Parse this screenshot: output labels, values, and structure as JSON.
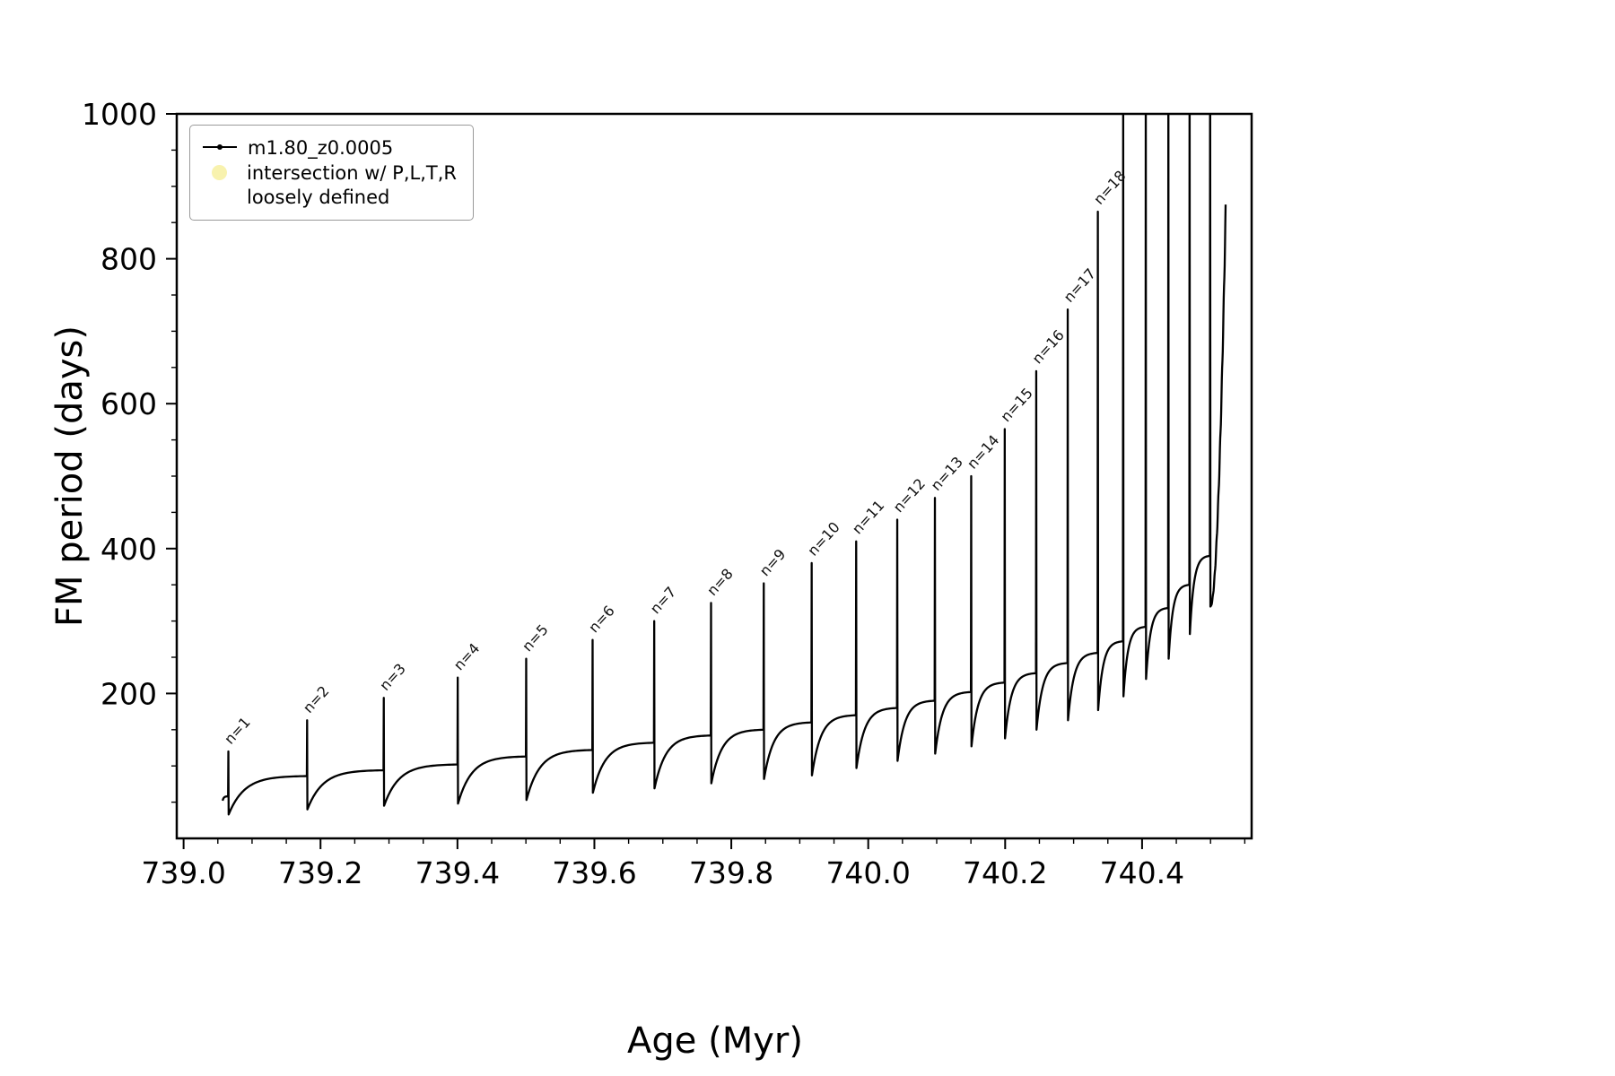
{
  "figure": {
    "background": "#ffffff",
    "frame_color": "#000000",
    "line_color": "#000000"
  },
  "chart_data": {
    "type": "line",
    "title": "",
    "xlabel": "Age (Myr)",
    "ylabel": "FM period (days)",
    "xlim": [
      738.99,
      740.56
    ],
    "ylim": [
      0,
      1000
    ],
    "xticks": [
      739.0,
      739.2,
      739.4,
      739.6,
      739.8,
      740.0,
      740.2,
      740.4
    ],
    "xtick_labels": [
      "739.0",
      "739.2",
      "739.4",
      "739.6",
      "739.8",
      "740.0",
      "740.2",
      "740.4"
    ],
    "yticks": [
      200,
      400,
      600,
      800,
      1000
    ],
    "ytick_labels": [
      "200",
      "400",
      "600",
      "800",
      "1000"
    ],
    "x_minor_step": 0.05,
    "y_minor_step": 50,
    "grid": false,
    "legend_position": "upper-left",
    "legend": [
      {
        "label": "m1.80_z0.0005",
        "marker": "dotted-line",
        "color": "#000000"
      },
      {
        "label_line1": "intersection w/ P,L,T,R",
        "label_line2": "loosely defined",
        "marker": "circle",
        "color": "#f8f2ae"
      }
    ],
    "series_name": "m1.80_z0.0005",
    "series_start": {
      "age": 739.057,
      "value": 52
    },
    "pulses": [
      {
        "label": "n=1",
        "age": 739.065,
        "peak": 120,
        "base": 58,
        "dip": 33
      },
      {
        "label": "n=2",
        "age": 739.18,
        "peak": 163,
        "base": 86,
        "dip": 40
      },
      {
        "label": "n=3",
        "age": 739.292,
        "peak": 194,
        "base": 94,
        "dip": 45
      },
      {
        "label": "n=4",
        "age": 739.4,
        "peak": 222,
        "base": 102,
        "dip": 48
      },
      {
        "label": "n=5",
        "age": 739.5,
        "peak": 248,
        "base": 113,
        "dip": 53
      },
      {
        "label": "n=6",
        "age": 739.597,
        "peak": 274,
        "base": 122,
        "dip": 63
      },
      {
        "label": "n=7",
        "age": 739.687,
        "peak": 300,
        "base": 132,
        "dip": 69
      },
      {
        "label": "n=8",
        "age": 739.77,
        "peak": 325,
        "base": 142,
        "dip": 76
      },
      {
        "label": "n=9",
        "age": 739.847,
        "peak": 352,
        "base": 150,
        "dip": 82
      },
      {
        "label": "n=10",
        "age": 739.917,
        "peak": 380,
        "base": 160,
        "dip": 87
      },
      {
        "label": "n=11",
        "age": 739.982,
        "peak": 410,
        "base": 170,
        "dip": 97
      },
      {
        "label": "n=12",
        "age": 740.042,
        "peak": 440,
        "base": 180,
        "dip": 107
      },
      {
        "label": "n=13",
        "age": 740.097,
        "peak": 470,
        "base": 190,
        "dip": 117
      },
      {
        "label": "n=14",
        "age": 740.15,
        "peak": 500,
        "base": 202,
        "dip": 127
      },
      {
        "label": "n=15",
        "age": 740.199,
        "peak": 565,
        "base": 215,
        "dip": 138
      },
      {
        "label": "n=16",
        "age": 740.245,
        "peak": 645,
        "base": 228,
        "dip": 150
      },
      {
        "label": "n=17",
        "age": 740.291,
        "peak": 730,
        "base": 242,
        "dip": 163
      },
      {
        "label": "n=18",
        "age": 740.335,
        "peak": 865,
        "base": 256,
        "dip": 177
      },
      {
        "label": null,
        "age": 740.372,
        "peak": 1050,
        "base": 272,
        "dip": 196
      },
      {
        "label": null,
        "age": 740.405,
        "peak": 1080,
        "base": 292,
        "dip": 220
      },
      {
        "label": null,
        "age": 740.438,
        "peak": 1110,
        "base": 318,
        "dip": 248
      },
      {
        "label": null,
        "age": 740.469,
        "peak": 1150,
        "base": 350,
        "dip": 282
      },
      {
        "label": null,
        "age": 740.499,
        "peak": 1200,
        "base": 390,
        "dip": 320
      }
    ],
    "tail": {
      "end_age": 740.522,
      "end_value": 865
    }
  }
}
